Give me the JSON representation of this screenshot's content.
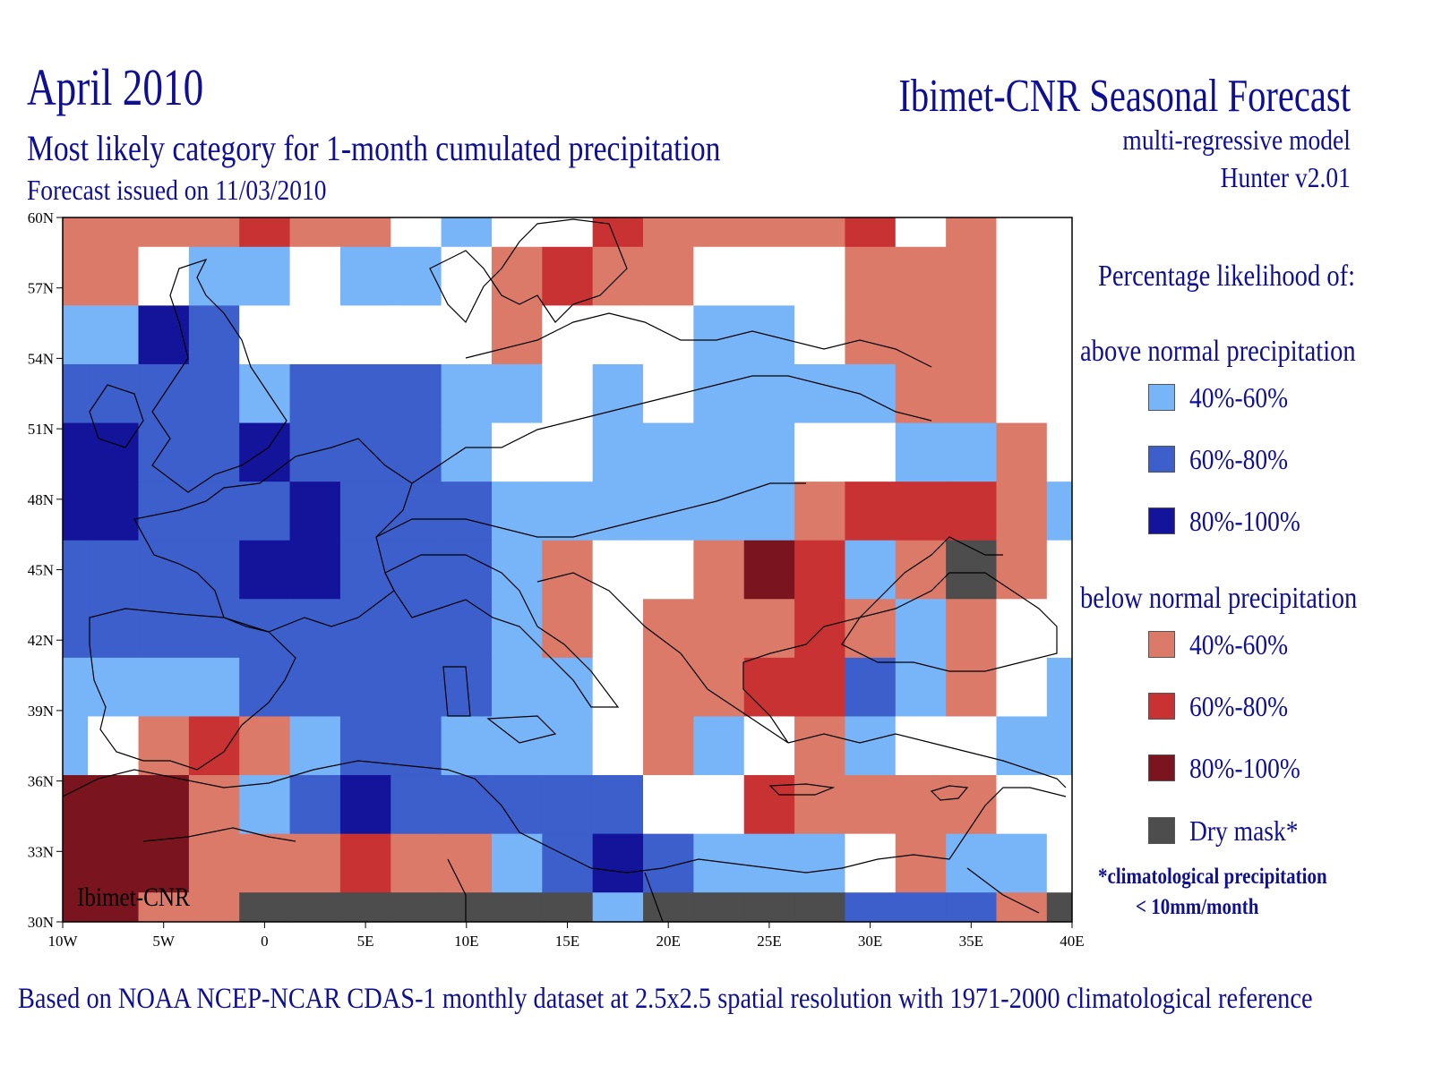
{
  "header": {
    "main_title": "April 2010",
    "subtitle": "Most likely category for 1-month cumulated precipitation",
    "issued": "Forecast issued on 11/03/2010",
    "brand": "Ibimet-CNR Seasonal Forecast",
    "model": "multi-regressive model",
    "version": "Hunter v2.01"
  },
  "footer": "Based on NOAA NCEP-NCAR CDAS-1 monthly dataset at 2.5x2.5 spatial resolution with 1971-2000 climatological reference",
  "map": {
    "watermark": "Ibimet-CNR",
    "lon_labels": [
      "10W",
      "5W",
      "0",
      "5E",
      "10E",
      "15E",
      "20E",
      "25E",
      "30E",
      "35E",
      "40E"
    ],
    "lat_labels": [
      "60N",
      "57N",
      "54N",
      "51N",
      "48N",
      "45N",
      "42N",
      "39N",
      "36N",
      "33N",
      "30N"
    ],
    "lon_range": [
      -10,
      40
    ],
    "lat_range": [
      30,
      60
    ],
    "grid_step_deg": 2.5,
    "cell_codes": "a=above 40-60, b=above 60-80, c=above 80-100, d=below 40-60, e=below 60-80, f=below 80-100, m=dry mask, w=white/normal",
    "grid_rows_north_to_south": [
      "ddddeddwawweddddewdw",
      "ddwaawaawdeddwwwdddw",
      "aacbwwwwwdwwwaawdddw",
      "bbbbabbbaawawaaaaddw",
      "ccbbcbbbawwaaaawwaadw",
      "ccbbbcbbbaaaaaadeeeda",
      "bbbbccbbbadwwdfeadmdw",
      "bbbbbbbbbadwdddedadw",
      "aaaabbbbbaawddeebadwa",
      "awdedabbaaawdawdawwaab",
      "fffdabcbbbbbwweddddww",
      "fffdddeddabcbaaawdaawa",
      "ffddmmmmmmmammmmbbbdmm"
    ],
    "colors": {
      "a": "#78b4f8",
      "b": "#3c5fcc",
      "c": "#14149a",
      "d": "#dc7a6a",
      "e": "#c83232",
      "f": "#7a141e",
      "m": "#4d4d4d",
      "w": "#ffffff"
    }
  },
  "legend": {
    "heading": "Percentage likelihood of:",
    "above_heading": "above normal precipitation",
    "below_heading": "below normal precipitation",
    "above_items": [
      {
        "label": "40%-60%",
        "color": "#78b4f8"
      },
      {
        "label": "60%-80%",
        "color": "#3c5fcc"
      },
      {
        "label": "80%-100%",
        "color": "#14149a"
      }
    ],
    "below_items": [
      {
        "label": "40%-60%",
        "color": "#dc7a6a"
      },
      {
        "label": "60%-80%",
        "color": "#c83232"
      },
      {
        "label": "80%-100%",
        "color": "#7a141e"
      }
    ],
    "dry_item": {
      "label": "Dry mask*",
      "color": "#4d4d4d"
    },
    "note_line1": "*climatological precipitation",
    "note_line2": "< 10mm/month"
  }
}
